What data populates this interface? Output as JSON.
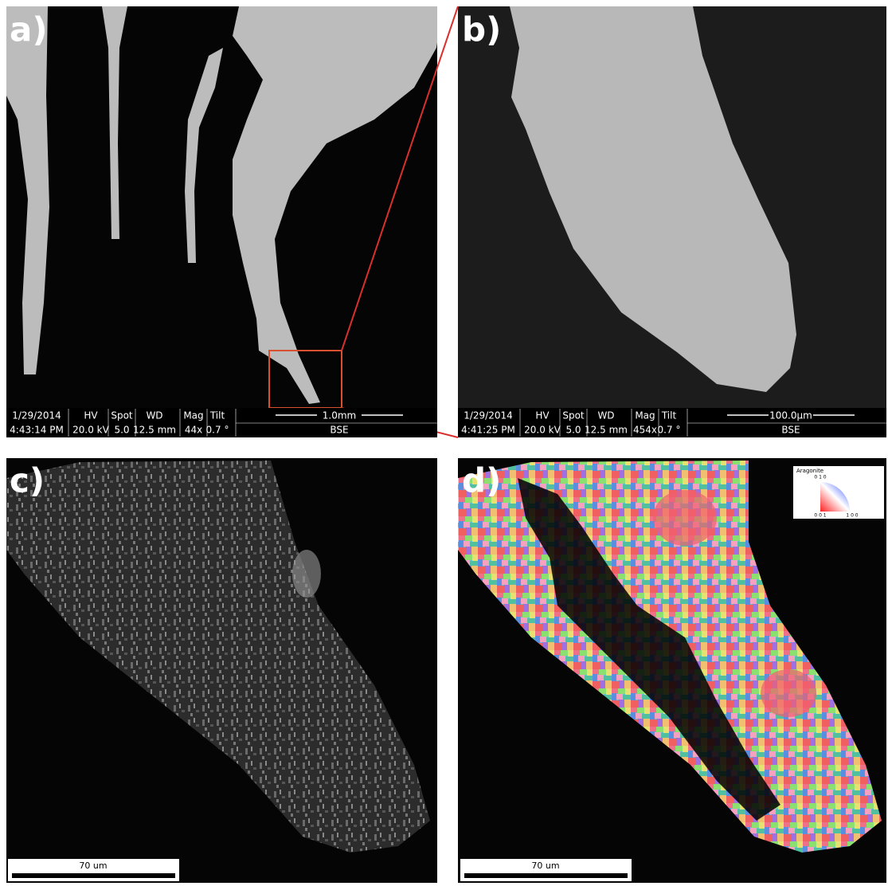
{
  "panels": [
    {
      "label": "a)",
      "databar": {
        "date": "1/29/2014",
        "time": "4:43:14 PM",
        "hv_label": "HV",
        "hv": "20.0 kV",
        "spot_label": "Spot",
        "spot": "5.0",
        "wd_label": "WD",
        "wd": "12.5 mm",
        "mag_label": "Mag",
        "mag": "44x",
        "tilt_label": "Tilt",
        "tilt": "0.7 °",
        "scale": "1.0mm",
        "detector": "BSE"
      }
    },
    {
      "label": "b)",
      "databar": {
        "date": "1/29/2014",
        "time": "4:41:25 PM",
        "hv_label": "HV",
        "hv": "20.0 kV",
        "spot_label": "Spot",
        "spot": "5.0",
        "wd_label": "WD",
        "wd": "12.5 mm",
        "mag_label": "Mag",
        "mag": "454x",
        "tilt_label": "Tilt",
        "tilt": "0.7 °",
        "scale": "100.0µm",
        "detector": "BSE"
      }
    },
    {
      "label": "c)",
      "scale_bar": "70 um"
    },
    {
      "label": "d)",
      "scale_bar": "70 um",
      "legend": {
        "title": "Aragonite",
        "top": "0 1 0",
        "left": "0 0 1",
        "right": "1 0 0"
      }
    }
  ]
}
